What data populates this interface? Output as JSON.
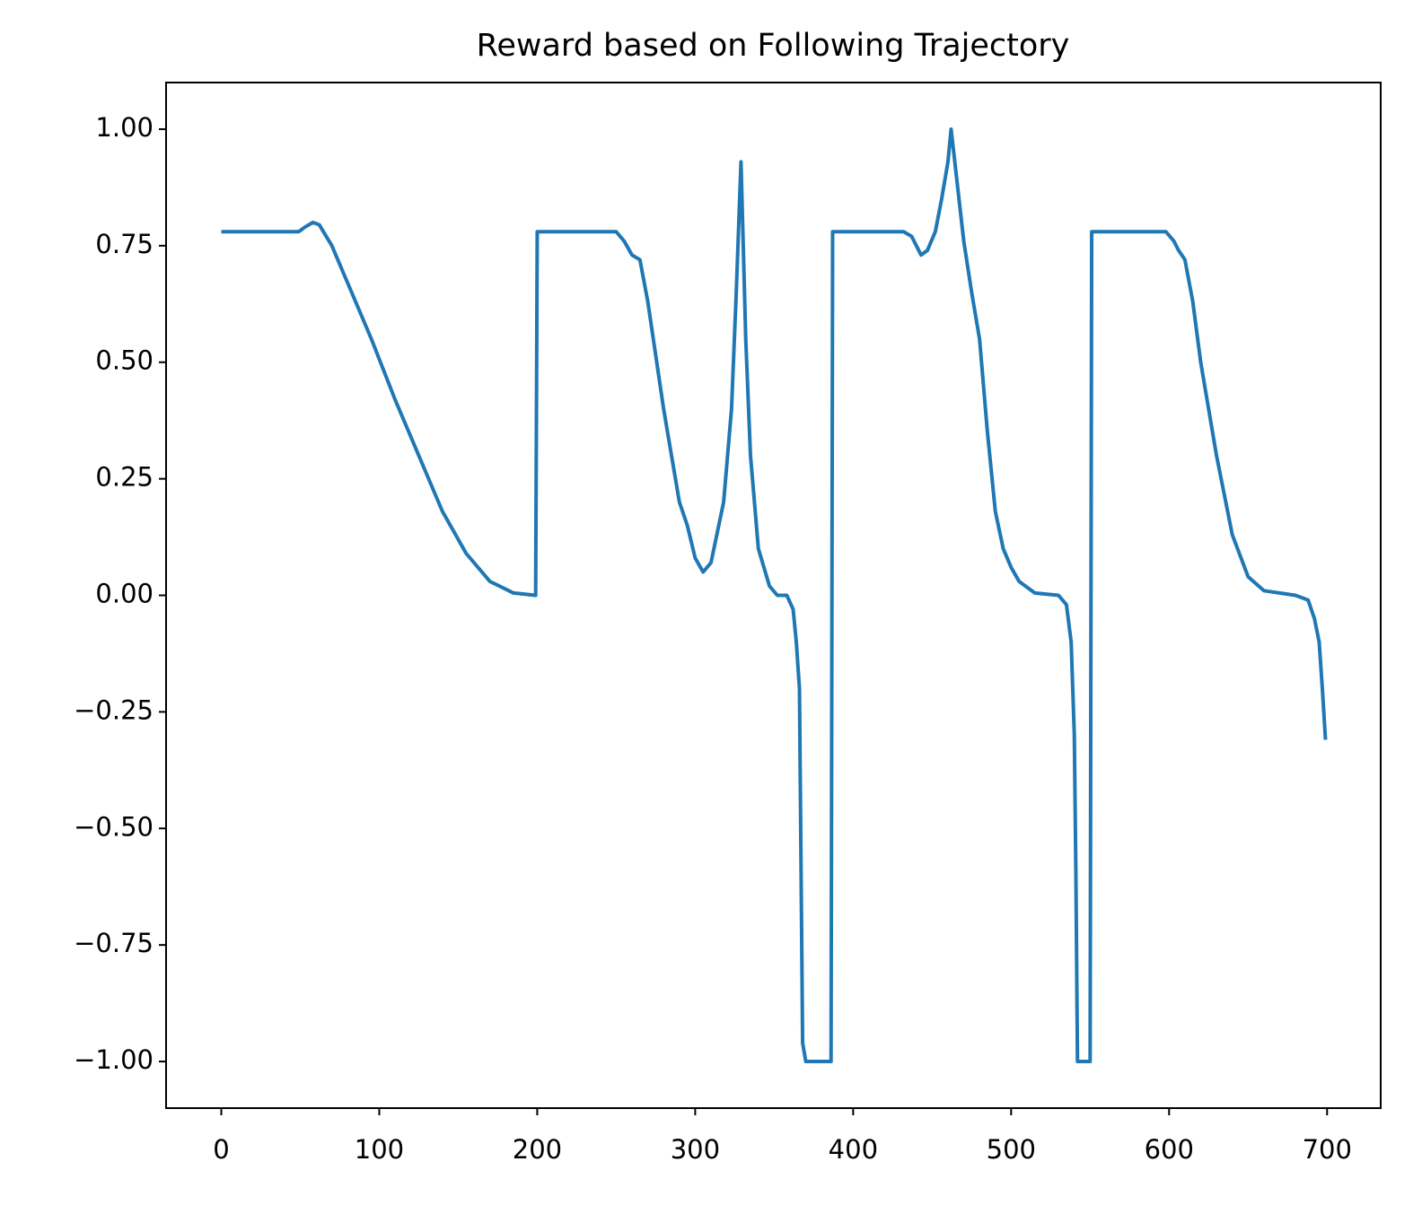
{
  "chart_data": {
    "type": "line",
    "title": "Reward based on Following Trajectory",
    "x": [
      0,
      49,
      53,
      58,
      62,
      70,
      80,
      95,
      110,
      125,
      140,
      155,
      170,
      185,
      199,
      200,
      250,
      255,
      260,
      265,
      270,
      280,
      290,
      295,
      300,
      305,
      310,
      318,
      323,
      326,
      329,
      332,
      335,
      340,
      347,
      352,
      358,
      362,
      364,
      366,
      368,
      370,
      386,
      387,
      432,
      437,
      440,
      443,
      447,
      452,
      456,
      460,
      462,
      466,
      470,
      475,
      480,
      485,
      490,
      495,
      500,
      505,
      515,
      530,
      535,
      538,
      540,
      541,
      542,
      550,
      551,
      598,
      603,
      606,
      610,
      615,
      620,
      630,
      640,
      650,
      660,
      680,
      688,
      692,
      695,
      697,
      699
    ],
    "series": [
      {
        "color": "#1f77b4",
        "values": [
          0.78,
          0.78,
          0.79,
          0.8,
          0.795,
          0.75,
          0.67,
          0.55,
          0.42,
          0.3,
          0.18,
          0.09,
          0.03,
          0.005,
          0.0,
          0.78,
          0.78,
          0.76,
          0.73,
          0.72,
          0.63,
          0.4,
          0.2,
          0.15,
          0.08,
          0.05,
          0.07,
          0.2,
          0.4,
          0.65,
          0.93,
          0.55,
          0.3,
          0.1,
          0.02,
          0.0,
          0.0,
          -0.03,
          -0.1,
          -0.2,
          -0.96,
          -1.0,
          -1.0,
          0.78,
          0.78,
          0.77,
          0.75,
          0.73,
          0.74,
          0.78,
          0.85,
          0.93,
          1.0,
          0.88,
          0.76,
          0.65,
          0.55,
          0.35,
          0.18,
          0.1,
          0.06,
          0.03,
          0.005,
          0.0,
          -0.02,
          -0.1,
          -0.3,
          -0.6,
          -1.0,
          -1.0,
          0.78,
          0.78,
          0.76,
          0.74,
          0.72,
          0.63,
          0.5,
          0.3,
          0.13,
          0.04,
          0.01,
          0.0,
          -0.01,
          -0.05,
          -0.1,
          -0.2,
          -0.31
        ]
      }
    ],
    "xlim": [
      -34.95,
      733.95
    ],
    "ylim": [
      -1.1,
      1.1
    ],
    "xticks": [
      0,
      100,
      200,
      300,
      400,
      500,
      600,
      700
    ],
    "yticks": [
      {
        "value": -1,
        "label": "−1.00"
      },
      {
        "value": -0.75,
        "label": "−0.75"
      },
      {
        "value": -0.5,
        "label": "−0.50"
      },
      {
        "value": -0.25,
        "label": "−0.25"
      },
      {
        "value": 0,
        "label": "0.00"
      },
      {
        "value": 0.25,
        "label": "0.25"
      },
      {
        "value": 0.5,
        "label": "0.50"
      },
      {
        "value": 0.75,
        "label": "0.75"
      },
      {
        "value": 1,
        "label": "1.00"
      }
    ]
  }
}
